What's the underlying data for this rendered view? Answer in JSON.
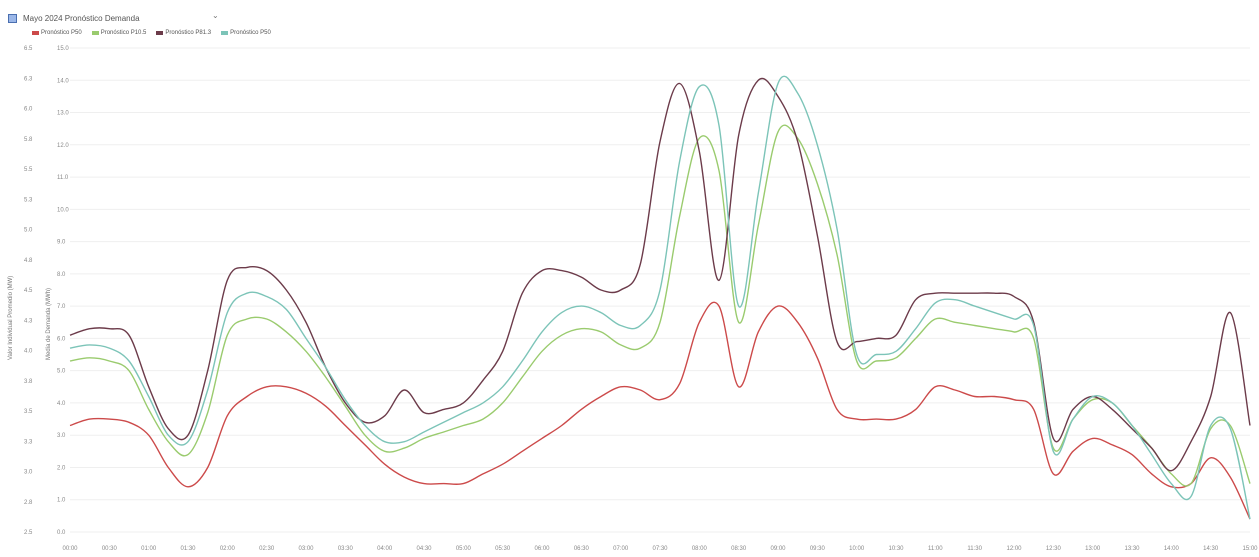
{
  "header": {
    "title": "Mayo 2024 Pronóstico Demanda",
    "dropdown_icon": "chevron-down-icon"
  },
  "chart_data": {
    "type": "line",
    "title": "Mayo 2024 Pronóstico Demanda",
    "y_left_label": "Valor Individual Promedio (MW)",
    "y_right_label": "Media de Demanda (MWh)",
    "legend_position": "top-left",
    "grid": true,
    "y_left_ticks": [
      "2.5",
      "2.8",
      "3.0",
      "3.3",
      "3.5",
      "3.8",
      "4.0",
      "4.3",
      "4.5",
      "4.8",
      "5.0",
      "5.3",
      "5.5",
      "5.8",
      "6.0",
      "6.3",
      "6.5"
    ],
    "y_right_ticks": [
      "0.0",
      "1.0",
      "2.0",
      "3.0",
      "4.0",
      "5.0",
      "6.0",
      "7.0",
      "8.0",
      "9.0",
      "10.0",
      "11.0",
      "12.0",
      "13.0",
      "14.0",
      "15.0"
    ],
    "x_ticks": [
      "00:00",
      "00:30",
      "01:00",
      "01:30",
      "02:00",
      "02:30",
      "03:00",
      "03:30",
      "04:00",
      "04:30",
      "05:00",
      "05:30",
      "06:00",
      "06:30",
      "07:00",
      "07:30",
      "08:00",
      "08:30",
      "09:00",
      "09:30",
      "10:00",
      "10:30",
      "11:00",
      "11:30",
      "12:00",
      "12:30",
      "13:00",
      "13:30",
      "14:00",
      "14:30",
      "15:00"
    ],
    "x": [
      0,
      1,
      2,
      3,
      4,
      5,
      6,
      7,
      8,
      9,
      10,
      11,
      12,
      13,
      14,
      15,
      16,
      17,
      18,
      19,
      20,
      21,
      22,
      23,
      24,
      25,
      26,
      27,
      28,
      29,
      30,
      31,
      32,
      33,
      34,
      35,
      36,
      37,
      38,
      39,
      40,
      41,
      42,
      43,
      44,
      45,
      46,
      47,
      48,
      49,
      50,
      51,
      52,
      53,
      54,
      55,
      56,
      57,
      58,
      59,
      60
    ],
    "ylim": [
      0,
      15
    ],
    "series": [
      {
        "name": "Pronóstico P50",
        "color": "#cc4a4a",
        "values": [
          3.3,
          3.5,
          3.5,
          3.4,
          3.0,
          2.0,
          1.4,
          2.0,
          3.6,
          4.2,
          4.5,
          4.5,
          4.3,
          3.9,
          3.3,
          2.7,
          2.1,
          1.7,
          1.5,
          1.5,
          1.5,
          1.8,
          2.1,
          2.5,
          2.9,
          3.3,
          3.8,
          4.2,
          4.5,
          4.4,
          4.1,
          4.6,
          6.5,
          7.0,
          4.5,
          6.2,
          7.0,
          6.5,
          5.4,
          3.8,
          3.5,
          3.5,
          3.5,
          3.8,
          4.5,
          4.4,
          4.2,
          4.2,
          4.1,
          3.8,
          1.8,
          2.5,
          2.9,
          2.7,
          2.4,
          1.8,
          1.4,
          1.5,
          2.3,
          1.7,
          0.4
        ]
      },
      {
        "name": "Pronóstico P10.5",
        "color": "#9acb6e",
        "values": [
          5.3,
          5.4,
          5.3,
          5.0,
          3.8,
          2.8,
          2.4,
          3.7,
          6.1,
          6.6,
          6.6,
          6.2,
          5.6,
          4.8,
          3.9,
          3.0,
          2.5,
          2.6,
          2.9,
          3.1,
          3.3,
          3.5,
          4.0,
          4.8,
          5.6,
          6.1,
          6.3,
          6.2,
          5.8,
          5.7,
          6.5,
          9.8,
          12.2,
          11.2,
          6.5,
          9.5,
          12.4,
          12.2,
          10.8,
          8.6,
          5.3,
          5.3,
          5.4,
          6.0,
          6.6,
          6.5,
          6.4,
          6.3,
          6.2,
          6.0,
          2.6,
          3.5,
          4.1,
          4.0,
          3.3,
          2.6,
          1.8,
          1.5,
          3.2,
          3.3,
          1.5
        ]
      },
      {
        "name": "Pronóstico P81.3",
        "color": "#6c3b4a",
        "values": [
          6.1,
          6.3,
          6.3,
          6.1,
          4.5,
          3.2,
          3.0,
          5.0,
          7.8,
          8.2,
          8.1,
          7.5,
          6.5,
          5.1,
          4.0,
          3.4,
          3.6,
          4.4,
          3.7,
          3.8,
          4.0,
          4.7,
          5.6,
          7.4,
          8.1,
          8.1,
          7.9,
          7.5,
          7.5,
          8.3,
          12.1,
          13.9,
          11.8,
          7.8,
          12.3,
          14.0,
          13.5,
          12.1,
          9.2,
          5.9,
          5.9,
          6.0,
          6.1,
          7.2,
          7.4,
          7.4,
          7.4,
          7.4,
          7.3,
          6.5,
          2.9,
          3.8,
          4.2,
          3.8,
          3.2,
          2.6,
          1.9,
          2.8,
          4.2,
          6.8,
          3.3
        ]
      },
      {
        "name": "Pronóstico P50",
        "color": "#7cc4b8",
        "values": [
          5.7,
          5.8,
          5.7,
          5.3,
          4.2,
          3.0,
          2.8,
          4.4,
          6.8,
          7.4,
          7.3,
          6.9,
          6.0,
          5.1,
          4.1,
          3.3,
          2.8,
          2.8,
          3.1,
          3.4,
          3.7,
          4.0,
          4.5,
          5.3,
          6.2,
          6.8,
          7.0,
          6.8,
          6.4,
          6.4,
          7.5,
          11.5,
          13.8,
          12.6,
          7.0,
          10.5,
          13.9,
          13.6,
          12.0,
          9.4,
          5.5,
          5.5,
          5.6,
          6.3,
          7.1,
          7.2,
          7.0,
          6.8,
          6.6,
          6.4,
          2.5,
          3.5,
          4.2,
          4.0,
          3.3,
          2.4,
          1.5,
          1.1,
          3.3,
          3.2,
          0.4
        ]
      }
    ]
  }
}
